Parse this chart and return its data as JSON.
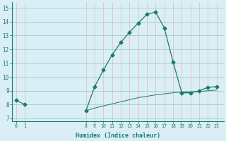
{
  "x_main": [
    0,
    1,
    8,
    9,
    10,
    11,
    12,
    13,
    14,
    15,
    16,
    17,
    18,
    19,
    20,
    21,
    22,
    23
  ],
  "y_main": [
    8.3,
    8.0,
    7.55,
    9.3,
    10.5,
    11.6,
    12.5,
    13.25,
    13.9,
    14.55,
    14.7,
    13.55,
    11.1,
    8.85,
    8.85,
    9.0,
    9.25,
    9.3
  ],
  "x_base": [
    8,
    9,
    10,
    11,
    12,
    13,
    14,
    15,
    16,
    17,
    18,
    19,
    20,
    21,
    22,
    23
  ],
  "y_base": [
    7.55,
    7.75,
    7.9,
    8.05,
    8.2,
    8.35,
    8.5,
    8.6,
    8.7,
    8.78,
    8.85,
    8.9,
    8.92,
    8.95,
    9.0,
    9.05
  ],
  "xtick_positions": [
    0,
    1,
    8,
    9,
    10,
    11,
    12,
    13,
    14,
    15,
    16,
    17,
    18,
    19,
    20,
    21,
    22,
    23
  ],
  "xtick_labels": [
    "0",
    "1",
    "8",
    "9",
    "10",
    "11",
    "12",
    "13",
    "14",
    "15",
    "16",
    "17",
    "18",
    "19",
    "20",
    "21",
    "22",
    "23"
  ],
  "yticks": [
    7,
    8,
    9,
    10,
    11,
    12,
    13,
    14,
    15
  ],
  "ylim": [
    6.8,
    15.4
  ],
  "xlim": [
    -0.5,
    23.8
  ],
  "xlabel": "Humidex (Indice chaleur)",
  "line_color": "#1a7a6a",
  "bg_color": "#d9eff5",
  "vgrid_color": "#e8c0c0",
  "hgrid_color": "#a8c8d0",
  "marker": "D",
  "markersize": 2.5
}
